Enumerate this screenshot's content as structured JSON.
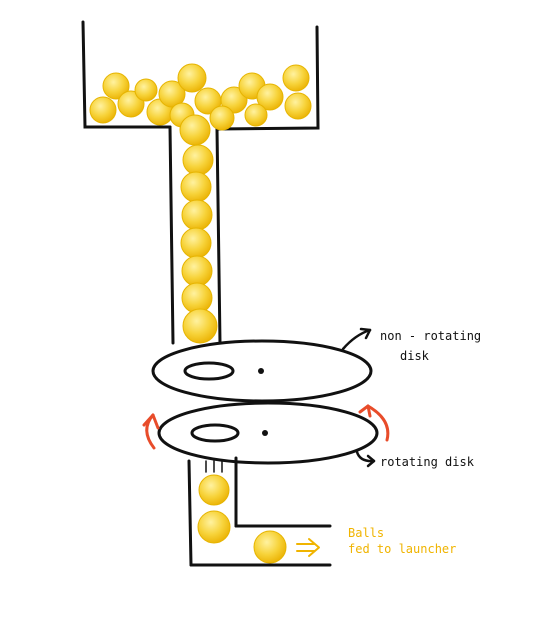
{
  "labels": {
    "non_rotating_line1": "non - rotating",
    "non_rotating_line2": "disk",
    "rotating": "rotating disk",
    "balls_line1": "Balls",
    "balls_line2": "fed to launcher"
  },
  "colors": {
    "ball_fill": "#f7d33a",
    "ball_edge": "#e8b800",
    "ink": "#111111",
    "rotation_arrow": "#e84c2a",
    "caption_text": "#f0b400"
  },
  "icons": {
    "feed_arrow": "double-arrow-right-icon",
    "rotation_arrows": "curved-arrow-icon"
  }
}
